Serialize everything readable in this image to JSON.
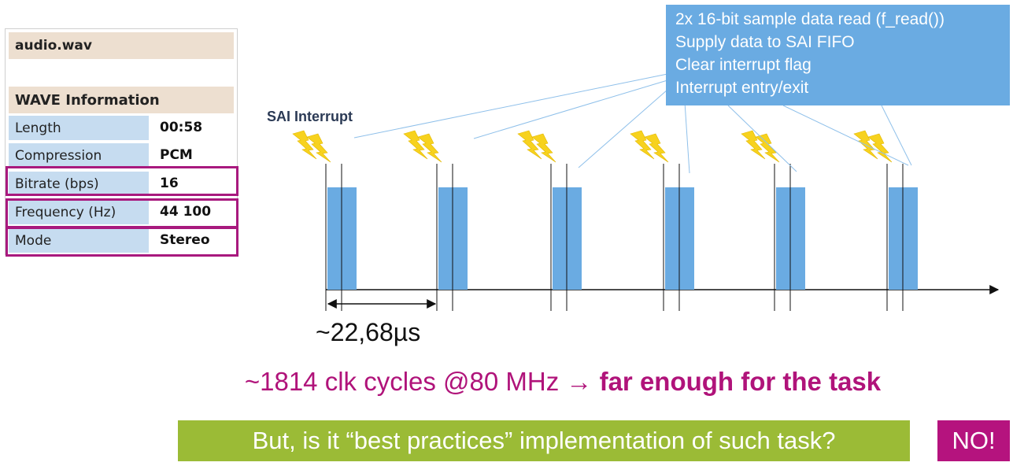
{
  "wave_panel": {
    "file_name": "audio.wav",
    "section_title": "WAVE Information",
    "rows": [
      {
        "key": "Length",
        "value": "00:58",
        "highlighted": false
      },
      {
        "key": "Compression",
        "value": "PCM",
        "highlighted": false
      },
      {
        "key": "Bitrate (bps)",
        "value": "16",
        "highlighted": true
      },
      {
        "key": "Frequency (Hz)",
        "value": "44 100",
        "highlighted": true
      },
      {
        "key": "Mode",
        "value": "Stereo",
        "highlighted": true
      }
    ]
  },
  "callout": {
    "lines": [
      "2x 16-bit sample data read (f_read())",
      "Supply data to SAI FIFO",
      "Clear interrupt flag",
      "Interrupt entry/exit"
    ]
  },
  "diagram": {
    "interrupt_label": "SAI Interrupt",
    "interrupt_count": 6,
    "period_label": "~22,68µs"
  },
  "cycles": {
    "prefix": "~1814 clk cycles @80 MHz → ",
    "emphasis": "far enough for the task"
  },
  "question": "But, is it “best practices” implementation of such task?",
  "answer": "NO!",
  "colors": {
    "callout_blue": "#6aabe2",
    "pulse_blue": "#6aabe2",
    "highlight_magenta": "#a8197e",
    "green": "#9bbb36",
    "lightning_yellow": "#f7d21e"
  }
}
